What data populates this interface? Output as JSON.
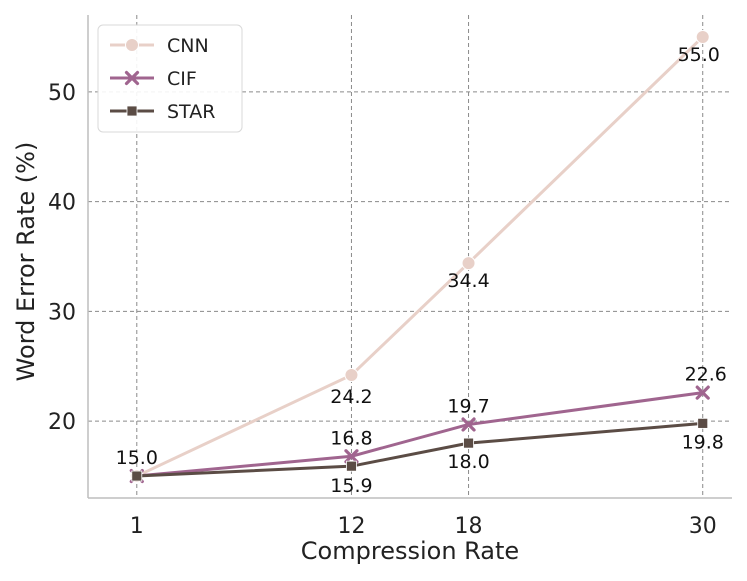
{
  "chart_data": {
    "type": "line",
    "x": [
      1,
      12,
      18,
      30
    ],
    "categories": [
      "1",
      "12",
      "18",
      "30"
    ],
    "series": [
      {
        "name": "CNN",
        "values": [
          15.0,
          24.2,
          34.4,
          55.0
        ],
        "color": "#e8d0c8",
        "marker": "circle",
        "labels": [
          "",
          "24.2",
          "34.4",
          "55.0"
        ]
      },
      {
        "name": "CIF",
        "values": [
          15.0,
          16.8,
          19.7,
          22.6
        ],
        "color": "#a0658f",
        "marker": "x",
        "labels": [
          "15.0",
          "16.8",
          "19.7",
          "22.6"
        ]
      },
      {
        "name": "STAR",
        "values": [
          15.0,
          15.9,
          18.0,
          19.8
        ],
        "color": "#5b4c45",
        "marker": "square",
        "labels": [
          "",
          "15.9",
          "18.0",
          "19.8"
        ]
      }
    ],
    "xlabel": "Compression Rate",
    "ylabel": "Word Error Rate (%)",
    "yticks": [
      20,
      30,
      40,
      50
    ],
    "xticks": [
      1,
      12,
      18,
      30
    ],
    "ylim": [
      13,
      57
    ],
    "xlim": [
      -1.5,
      31.5
    ],
    "grid": true,
    "legend_position": "top-left"
  }
}
